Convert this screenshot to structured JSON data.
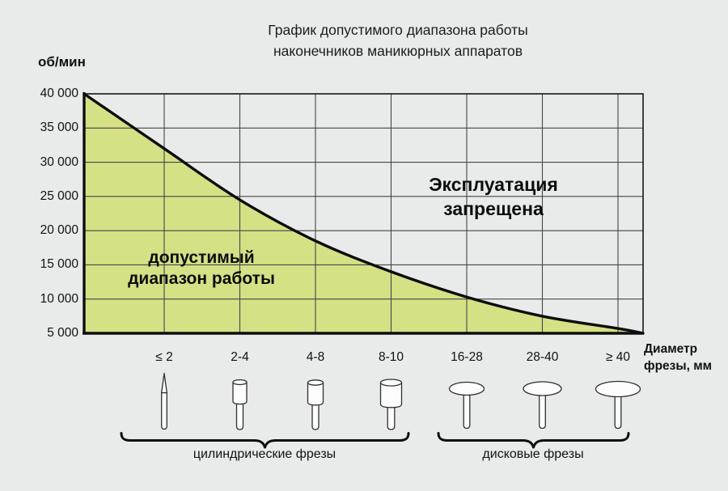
{
  "title_line1": "График допустимого диапазона работы",
  "title_line2": "наконечников маникюрных аппаратов",
  "colors": {
    "background": "#e9ebea",
    "allowed_fill": "#d6e085",
    "line": "#0d0d0d",
    "grid": "#454545"
  },
  "icons": {
    "bur_shapes": [
      "needle-bur-icon",
      "small-cylinder-bur-icon",
      "medium-cylinder-bur-icon",
      "large-cylinder-bur-icon",
      "small-disc-bur-icon",
      "medium-disc-bur-icon",
      "large-disc-bur-icon"
    ]
  },
  "chart_data": {
    "type": "area",
    "title": "График допустимого диапазона работы наконечников маникюрных аппаратов",
    "ylabel_unit": "об/мин",
    "xlabel_line1": "Диаметр",
    "xlabel_line2": "фрезы, мм",
    "categories": [
      "≤ 2",
      "2-4",
      "4-8",
      "8-10",
      "16-28",
      "28-40",
      "≥ 40"
    ],
    "ytick_labels": [
      "40 000",
      "35 000",
      "30 000",
      "25 000",
      "20 000",
      "15 000",
      "10 000",
      "5 000"
    ],
    "ylim": [
      5000,
      40000
    ],
    "ytick_step": 5000,
    "grid": true,
    "boundary_curve_rpm": [
      40000,
      32000,
      24500,
      18500,
      14000,
      10300,
      7500,
      5700,
      5000
    ],
    "boundary_curve_note": "max allowed rpm from left plot edge, at each category gridline, to right plot edge",
    "allowed_region_line1": "допустимый",
    "allowed_region_line2": "диапазон работы",
    "forbidden_region_line1": "Эксплуатация",
    "forbidden_region_line2": "запрещена",
    "tool_groups": [
      {
        "label": "цилиндрические фрезы",
        "categories": [
          "≤ 2",
          "2-4",
          "4-8",
          "8-10"
        ]
      },
      {
        "label": "дисковые фрезы",
        "categories": [
          "16-28",
          "28-40",
          "≥ 40"
        ]
      }
    ]
  }
}
